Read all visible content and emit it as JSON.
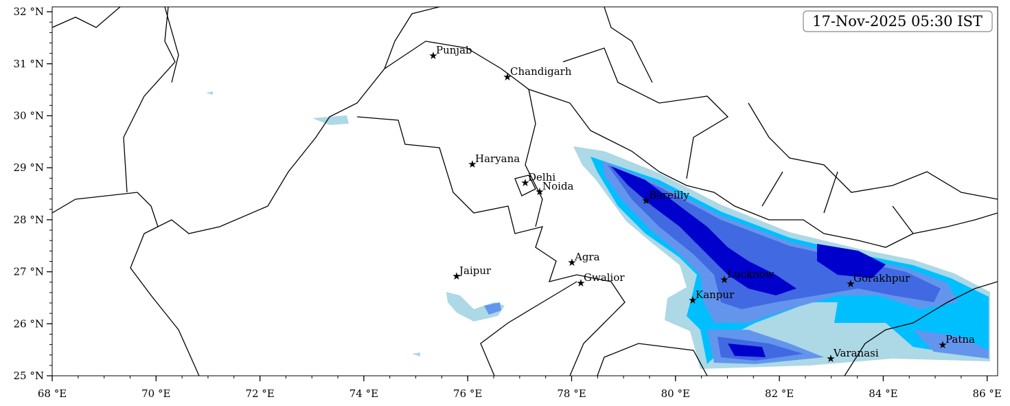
{
  "timestamp": "17-Nov-2025 05:30 IST",
  "axes": {
    "x_labels": [
      "68 °E",
      "70 °E",
      "72 °E",
      "74 °E",
      "76 °E",
      "78 °E",
      "80 °E",
      "82 °E",
      "84 °E",
      "86 °E"
    ],
    "y_labels": [
      "25 °N",
      "26 °N",
      "27 °N",
      "28 °N",
      "29 °N",
      "30 °N",
      "31 °N",
      "32 °N"
    ]
  },
  "cities": [
    "Punjab",
    "Chandigarh",
    "Haryana",
    "Delhi",
    "Noida",
    "Bareilly",
    "Agra",
    "Jaipur",
    "Gwalior",
    "Lucknow",
    "Gorakhpur",
    "Kanpur",
    "Varanasi",
    "Patna"
  ]
}
